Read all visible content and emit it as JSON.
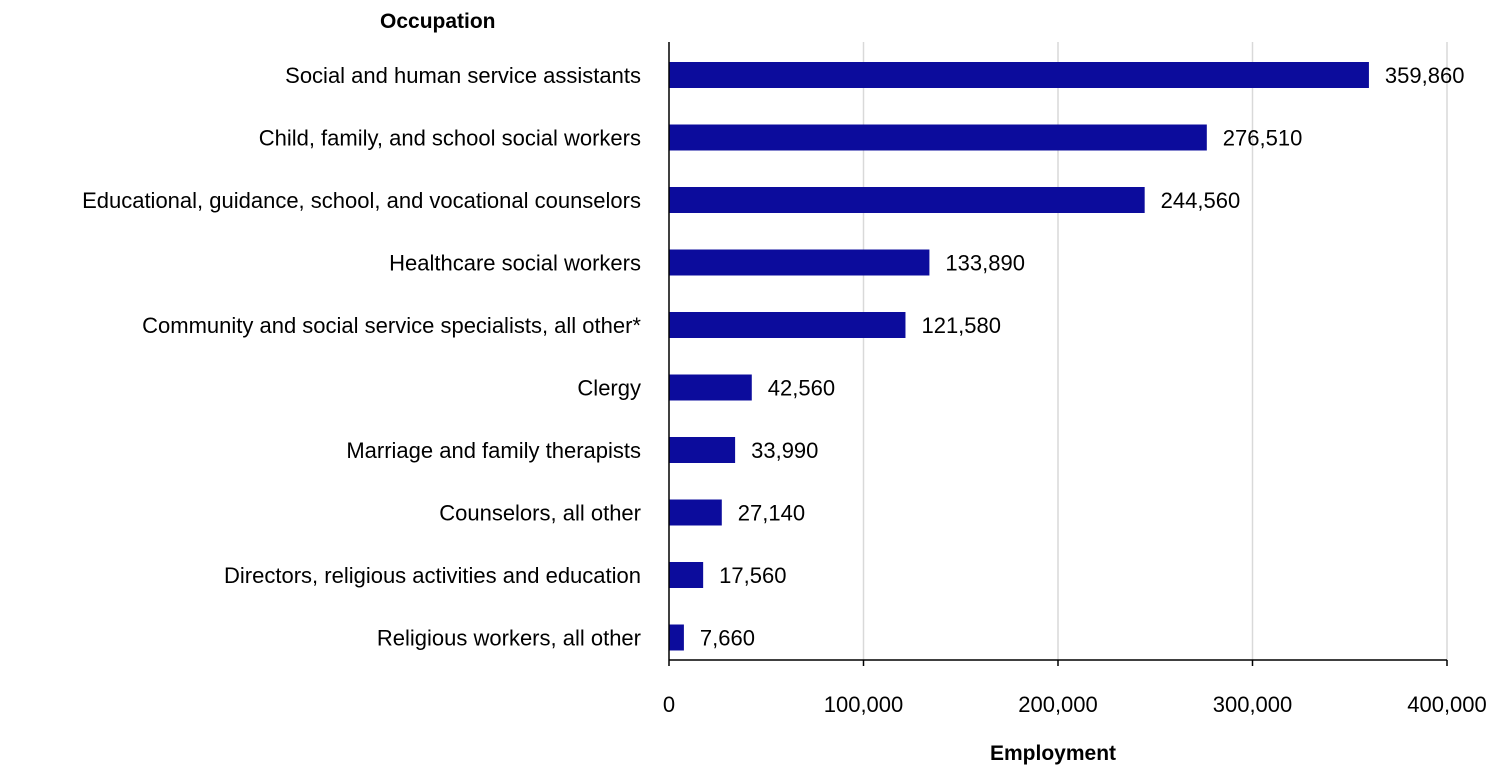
{
  "chart_data": {
    "type": "bar",
    "orientation": "horizontal",
    "y_axis_title": "Occupation",
    "x_axis_title": "Employment",
    "categories": [
      "Social and human service assistants",
      "Child, family, and school social workers",
      "Educational, guidance, school, and vocational counselors",
      "Healthcare social workers",
      "Community and social service specialists, all other*",
      "Clergy",
      "Marriage and family therapists",
      "Counselors, all other",
      "Directors, religious activities and education",
      "Religious workers, all other"
    ],
    "values": [
      359860,
      276510,
      244560,
      133890,
      121580,
      42560,
      33990,
      27140,
      17560,
      7660
    ],
    "value_labels": [
      "359,860",
      "276,510",
      "244,560",
      "133,890",
      "121,580",
      "42,560",
      "33,990",
      "27,140",
      "17,560",
      "7,660"
    ],
    "xlim": [
      0,
      400000
    ],
    "x_ticks": [
      0,
      100000,
      200000,
      300000,
      400000
    ],
    "x_tick_labels": [
      "0",
      "100,000",
      "200,000",
      "300,000",
      "400,000"
    ],
    "grid": "vertical",
    "legend": "none",
    "bar_color": "#0c0c9c"
  }
}
